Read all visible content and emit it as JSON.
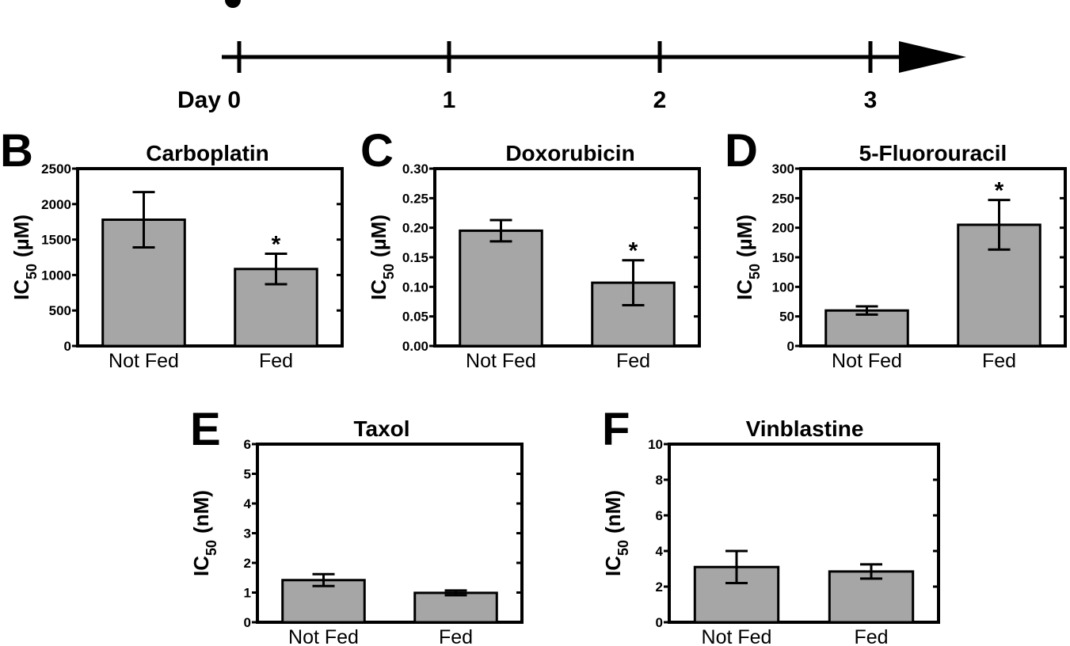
{
  "timeline": {
    "labels": [
      "Day 0",
      "1",
      "2",
      "3"
    ]
  },
  "chart_data": [
    {
      "panel": "B",
      "type": "bar",
      "title": "Carboplatin",
      "ylabel": "IC50 (µM)",
      "ylabel_main": "IC",
      "ylabel_sub": "50",
      "ylabel_unit": "(µM)",
      "categories": [
        "Not Fed",
        "Fed"
      ],
      "values": [
        1780,
        1085
      ],
      "errors": [
        390,
        215
      ],
      "significance": [
        "",
        "*"
      ],
      "ylim": [
        0,
        2500
      ],
      "yticks": [
        0,
        500,
        1000,
        1500,
        2000,
        2500
      ],
      "ytick_labels": [
        "0",
        "500",
        "1000",
        "1500",
        "2000",
        "2500"
      ]
    },
    {
      "panel": "C",
      "type": "bar",
      "title": "Doxorubicin",
      "ylabel": "IC50 (µM)",
      "ylabel_main": "IC",
      "ylabel_sub": "50",
      "ylabel_unit": "(µM)",
      "categories": [
        "Not Fed",
        "Fed"
      ],
      "values": [
        0.195,
        0.107
      ],
      "errors": [
        0.018,
        0.038
      ],
      "significance": [
        "",
        "*"
      ],
      "ylim": [
        0,
        0.3
      ],
      "yticks": [
        0,
        0.05,
        0.1,
        0.15,
        0.2,
        0.25,
        0.3
      ],
      "ytick_labels": [
        "0.00",
        "0.05",
        "0.10",
        "0.15",
        "0.20",
        "0.25",
        "0.30"
      ]
    },
    {
      "panel": "D",
      "type": "bar",
      "title": "5-Fluorouracil",
      "ylabel": "IC50 (µM)",
      "ylabel_main": "IC",
      "ylabel_sub": "50",
      "ylabel_unit": "(µM)",
      "categories": [
        "Not Fed",
        "Fed"
      ],
      "values": [
        60,
        205
      ],
      "errors": [
        7,
        42
      ],
      "significance": [
        "",
        "*"
      ],
      "ylim": [
        0,
        300
      ],
      "yticks": [
        0,
        50,
        100,
        150,
        200,
        250,
        300
      ],
      "ytick_labels": [
        "0",
        "50",
        "100",
        "150",
        "200",
        "250",
        "300"
      ]
    },
    {
      "panel": "E",
      "type": "bar",
      "title": "Taxol",
      "ylabel": "IC50 (nM)",
      "ylabel_main": "IC",
      "ylabel_sub": "50",
      "ylabel_unit": "(nM)",
      "categories": [
        "Not Fed",
        "Fed"
      ],
      "values": [
        1.42,
        0.99
      ],
      "errors": [
        0.2,
        0.08
      ],
      "significance": [
        "",
        ""
      ],
      "ylim": [
        0,
        6
      ],
      "yticks": [
        0,
        1,
        2,
        3,
        4,
        5,
        6
      ],
      "ytick_labels": [
        "0",
        "1",
        "2",
        "3",
        "4",
        "5",
        "6"
      ]
    },
    {
      "panel": "F",
      "type": "bar",
      "title": "Vinblastine",
      "ylabel": "IC50 (nM)",
      "ylabel_main": "IC",
      "ylabel_sub": "50",
      "ylabel_unit": "(nM)",
      "categories": [
        "Not Fed",
        "Fed"
      ],
      "values": [
        3.1,
        2.85
      ],
      "errors": [
        0.9,
        0.4
      ],
      "significance": [
        "",
        ""
      ],
      "ylim": [
        0,
        10
      ],
      "yticks": [
        0,
        2,
        4,
        6,
        8,
        10
      ],
      "ytick_labels": [
        "0",
        "2",
        "4",
        "6",
        "8",
        "10"
      ]
    }
  ]
}
